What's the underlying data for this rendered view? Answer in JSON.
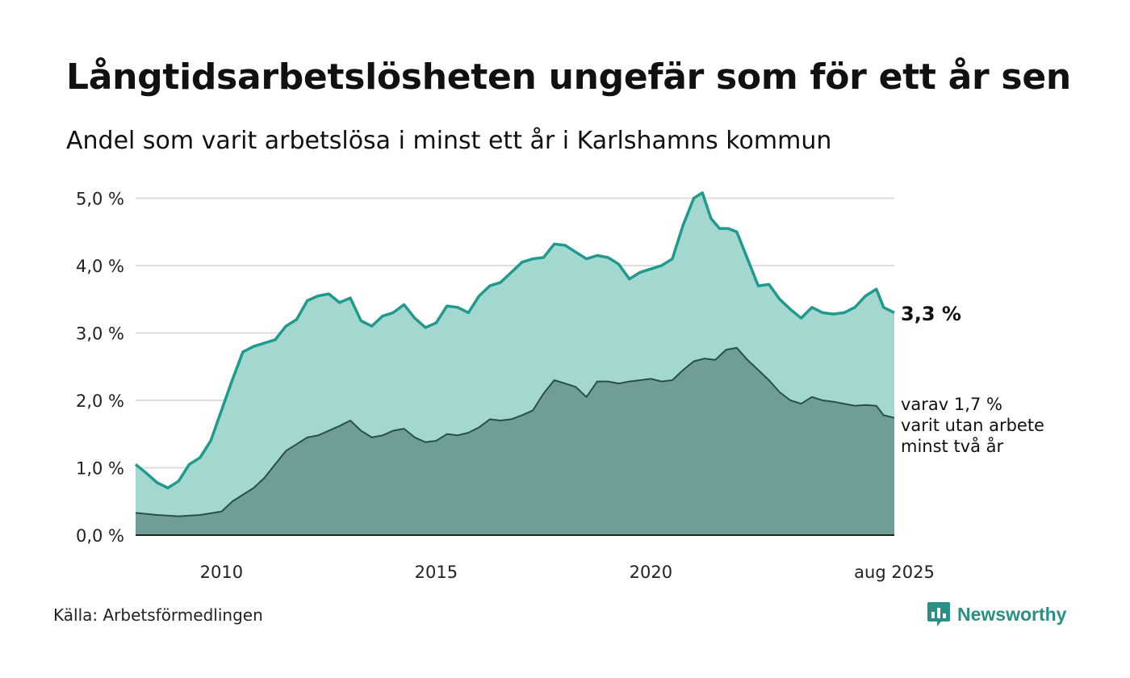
{
  "title": "Långtidsarbetslösheten ungefär som för ett år sen",
  "subtitle": "Andel som varit arbetslösa i minst ett år i Karlshamns kommun",
  "source": "Källa: Arbetsförmedlingen",
  "brand": {
    "name": "Newsworthy",
    "icon": "newsworthy-chart-icon",
    "color": "#2a8f84"
  },
  "colors": {
    "total_line": "#1f9a8c",
    "total_fill": "#a3d8d1",
    "longterm_line": "#2a4f49",
    "longterm_fill": "#6f9e96",
    "grid": "#dddddd",
    "baseline": "#222222"
  },
  "chart_data": {
    "type": "area",
    "x_ticks": [
      "2010",
      "2015",
      "2020",
      "aug 2025"
    ],
    "y_ticks": [
      "0,0 %",
      "1,0 %",
      "2,0 %",
      "3,0 %",
      "4,0 %",
      "5,0 %"
    ],
    "ylim": [
      0,
      5.2
    ],
    "xlim": [
      2008.0,
      2025.67
    ],
    "grid": true,
    "end_labels": {
      "total": "3,3 %",
      "longterm_lines": [
        "varav 1,7 %",
        "varit utan arbete",
        "minst två år"
      ]
    },
    "series": [
      {
        "key": "total",
        "points": [
          [
            2008.0,
            1.05
          ],
          [
            2008.25,
            0.92
          ],
          [
            2008.5,
            0.78
          ],
          [
            2008.75,
            0.7
          ],
          [
            2009.0,
            0.8
          ],
          [
            2009.25,
            1.05
          ],
          [
            2009.5,
            1.15
          ],
          [
            2009.75,
            1.4
          ],
          [
            2010.0,
            1.85
          ],
          [
            2010.25,
            2.3
          ],
          [
            2010.5,
            2.72
          ],
          [
            2010.75,
            2.8
          ],
          [
            2011.0,
            2.85
          ],
          [
            2011.25,
            2.9
          ],
          [
            2011.5,
            3.1
          ],
          [
            2011.75,
            3.2
          ],
          [
            2012.0,
            3.48
          ],
          [
            2012.25,
            3.55
          ],
          [
            2012.5,
            3.58
          ],
          [
            2012.75,
            3.45
          ],
          [
            2013.0,
            3.52
          ],
          [
            2013.25,
            3.18
          ],
          [
            2013.5,
            3.1
          ],
          [
            2013.75,
            3.25
          ],
          [
            2014.0,
            3.3
          ],
          [
            2014.25,
            3.42
          ],
          [
            2014.5,
            3.22
          ],
          [
            2014.75,
            3.08
          ],
          [
            2015.0,
            3.15
          ],
          [
            2015.25,
            3.4
          ],
          [
            2015.5,
            3.38
          ],
          [
            2015.75,
            3.3
          ],
          [
            2016.0,
            3.55
          ],
          [
            2016.25,
            3.7
          ],
          [
            2016.5,
            3.75
          ],
          [
            2016.75,
            3.9
          ],
          [
            2017.0,
            4.05
          ],
          [
            2017.25,
            4.1
          ],
          [
            2017.5,
            4.12
          ],
          [
            2017.75,
            4.32
          ],
          [
            2018.0,
            4.3
          ],
          [
            2018.25,
            4.2
          ],
          [
            2018.5,
            4.1
          ],
          [
            2018.75,
            4.15
          ],
          [
            2019.0,
            4.12
          ],
          [
            2019.25,
            4.02
          ],
          [
            2019.5,
            3.8
          ],
          [
            2019.75,
            3.9
          ],
          [
            2020.0,
            3.95
          ],
          [
            2020.25,
            4.0
          ],
          [
            2020.5,
            4.1
          ],
          [
            2020.75,
            4.6
          ],
          [
            2021.0,
            5.0
          ],
          [
            2021.2,
            5.08
          ],
          [
            2021.4,
            4.7
          ],
          [
            2021.6,
            4.55
          ],
          [
            2021.8,
            4.55
          ],
          [
            2022.0,
            4.5
          ],
          [
            2022.25,
            4.1
          ],
          [
            2022.5,
            3.7
          ],
          [
            2022.75,
            3.72
          ],
          [
            2023.0,
            3.5
          ],
          [
            2023.25,
            3.35
          ],
          [
            2023.5,
            3.22
          ],
          [
            2023.75,
            3.38
          ],
          [
            2024.0,
            3.3
          ],
          [
            2024.25,
            3.28
          ],
          [
            2024.5,
            3.3
          ],
          [
            2024.75,
            3.38
          ],
          [
            2025.0,
            3.55
          ],
          [
            2025.25,
            3.65
          ],
          [
            2025.42,
            3.38
          ],
          [
            2025.67,
            3.3
          ]
        ]
      },
      {
        "key": "longterm",
        "points": [
          [
            2008.0,
            0.33
          ],
          [
            2008.5,
            0.3
          ],
          [
            2009.0,
            0.28
          ],
          [
            2009.5,
            0.3
          ],
          [
            2010.0,
            0.35
          ],
          [
            2010.25,
            0.5
          ],
          [
            2010.5,
            0.6
          ],
          [
            2010.75,
            0.7
          ],
          [
            2011.0,
            0.85
          ],
          [
            2011.25,
            1.05
          ],
          [
            2011.5,
            1.25
          ],
          [
            2011.75,
            1.35
          ],
          [
            2012.0,
            1.45
          ],
          [
            2012.25,
            1.48
          ],
          [
            2012.5,
            1.55
          ],
          [
            2012.75,
            1.62
          ],
          [
            2013.0,
            1.7
          ],
          [
            2013.25,
            1.55
          ],
          [
            2013.5,
            1.45
          ],
          [
            2013.75,
            1.48
          ],
          [
            2014.0,
            1.55
          ],
          [
            2014.25,
            1.58
          ],
          [
            2014.5,
            1.45
          ],
          [
            2014.75,
            1.38
          ],
          [
            2015.0,
            1.4
          ],
          [
            2015.25,
            1.5
          ],
          [
            2015.5,
            1.48
          ],
          [
            2015.75,
            1.52
          ],
          [
            2016.0,
            1.6
          ],
          [
            2016.25,
            1.72
          ],
          [
            2016.5,
            1.7
          ],
          [
            2016.75,
            1.72
          ],
          [
            2017.0,
            1.78
          ],
          [
            2017.25,
            1.85
          ],
          [
            2017.5,
            2.1
          ],
          [
            2017.75,
            2.3
          ],
          [
            2018.0,
            2.25
          ],
          [
            2018.25,
            2.2
          ],
          [
            2018.5,
            2.05
          ],
          [
            2018.75,
            2.28
          ],
          [
            2019.0,
            2.28
          ],
          [
            2019.25,
            2.25
          ],
          [
            2019.5,
            2.28
          ],
          [
            2019.75,
            2.3
          ],
          [
            2020.0,
            2.32
          ],
          [
            2020.25,
            2.28
          ],
          [
            2020.5,
            2.3
          ],
          [
            2020.75,
            2.45
          ],
          [
            2021.0,
            2.58
          ],
          [
            2021.25,
            2.62
          ],
          [
            2021.5,
            2.6
          ],
          [
            2021.75,
            2.75
          ],
          [
            2022.0,
            2.78
          ],
          [
            2022.25,
            2.6
          ],
          [
            2022.5,
            2.45
          ],
          [
            2022.75,
            2.3
          ],
          [
            2023.0,
            2.12
          ],
          [
            2023.25,
            2.0
          ],
          [
            2023.5,
            1.95
          ],
          [
            2023.75,
            2.05
          ],
          [
            2024.0,
            2.0
          ],
          [
            2024.25,
            1.98
          ],
          [
            2024.5,
            1.95
          ],
          [
            2024.75,
            1.92
          ],
          [
            2025.0,
            1.93
          ],
          [
            2025.25,
            1.92
          ],
          [
            2025.42,
            1.78
          ],
          [
            2025.67,
            1.74
          ]
        ]
      }
    ]
  }
}
